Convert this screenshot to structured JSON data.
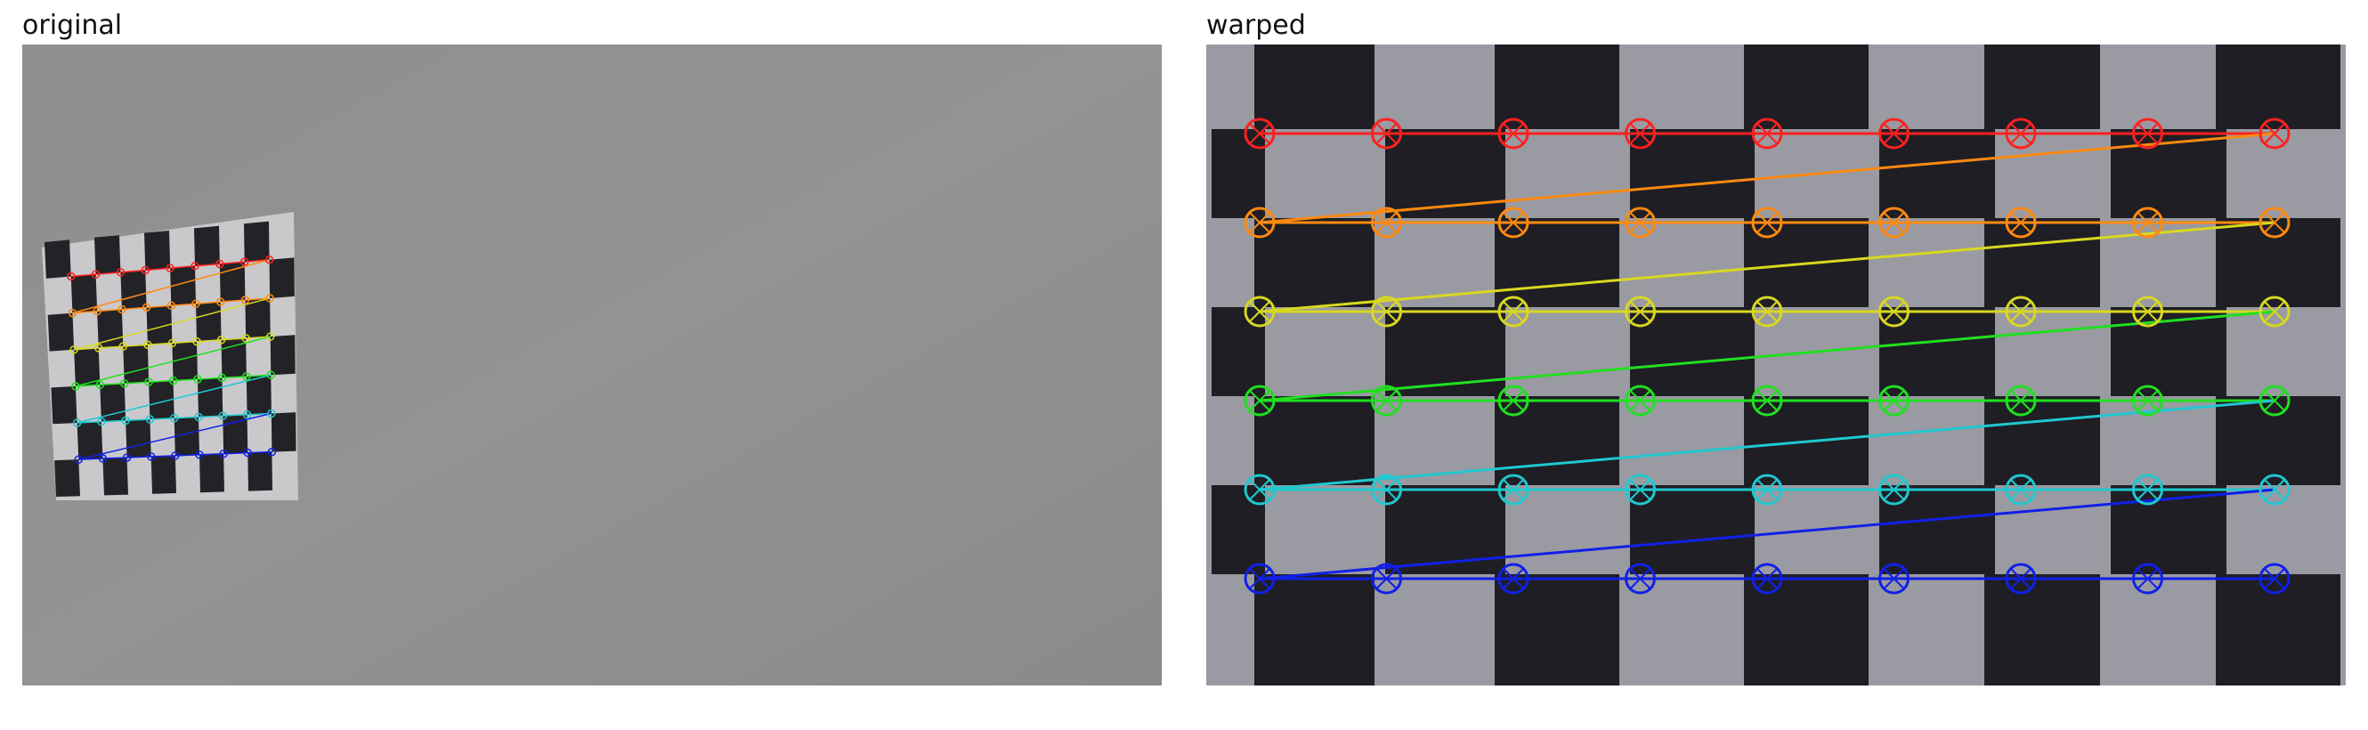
{
  "figure": {
    "panels": [
      {
        "title": "original"
      },
      {
        "title": "warped"
      }
    ]
  },
  "detection": {
    "pattern_cols": 9,
    "pattern_rows": 6,
    "row_colors": [
      "#ff2020",
      "#ff8a10",
      "#d8d820",
      "#20e020",
      "#20c8d0",
      "#1020e8"
    ]
  }
}
